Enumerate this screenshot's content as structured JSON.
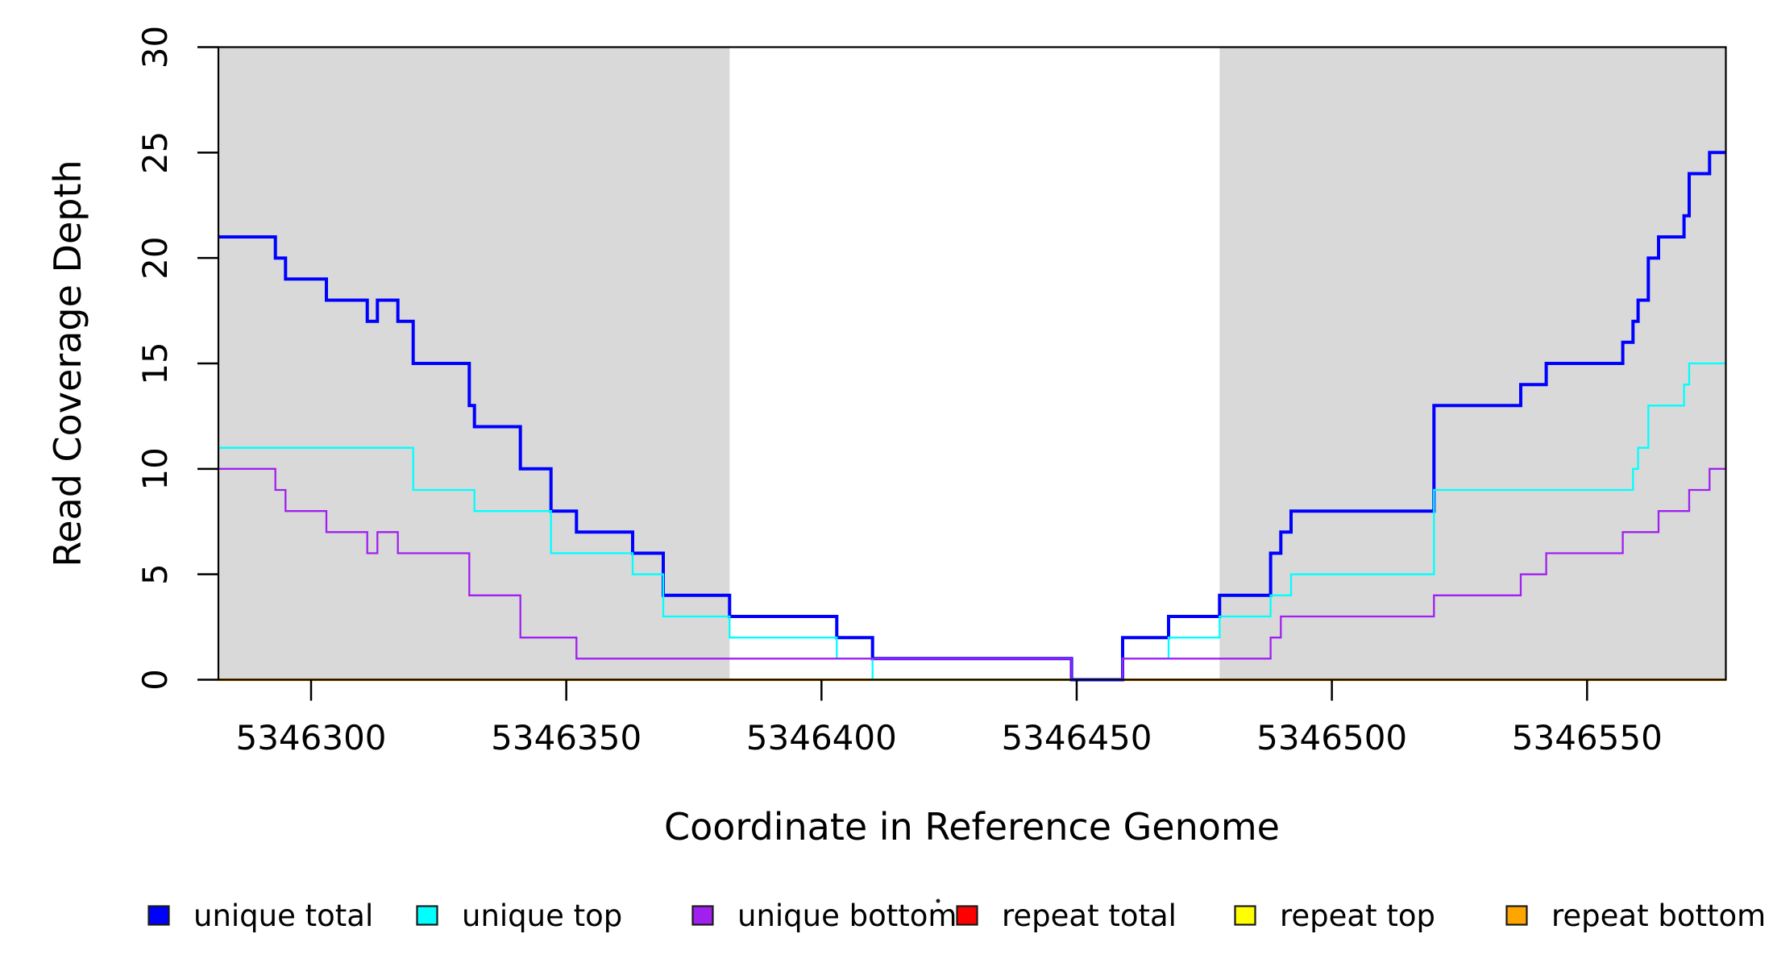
{
  "figure": {
    "background": "#FFFFFF",
    "stray_mark": {
      "color": "#1a1a1a"
    }
  },
  "chart_data": {
    "type": "line",
    "step": true,
    "title": "",
    "xlabel": "Coordinate in Reference Genome",
    "ylabel": "Read Coverage Depth",
    "xlim": [
      5346281.8,
      5346577.2
    ],
    "ylim": [
      0,
      30
    ],
    "grid": false,
    "legend_position": "bottom",
    "x_ticks": [
      5346300,
      5346350,
      5346400,
      5346450,
      5346500,
      5346550
    ],
    "x_tick_labels": [
      "5346300",
      "5346350",
      "5346400",
      "5346450",
      "5346500",
      "5346550"
    ],
    "y_ticks": [
      0,
      5,
      10,
      15,
      20,
      25,
      30
    ],
    "y_tick_labels": [
      "0",
      "5",
      "10",
      "15",
      "20",
      "25",
      "30"
    ],
    "shade_color": "#D9D9D9",
    "shaded_regions": [
      [
        5346281.8,
        5346382
      ],
      [
        5346478,
        5346577.2
      ]
    ],
    "draw_order": [
      "repeat total",
      "repeat top",
      "repeat bottom",
      "unique total",
      "unique top",
      "unique bottom"
    ],
    "series": [
      {
        "name": "unique total",
        "color": "#0000FF",
        "width": 4,
        "points": [
          [
            5346281.8,
            21
          ],
          [
            5346293,
            20
          ],
          [
            5346295,
            19
          ],
          [
            5346303,
            18
          ],
          [
            5346311,
            17
          ],
          [
            5346313,
            18
          ],
          [
            5346317,
            17
          ],
          [
            5346320,
            15
          ],
          [
            5346331,
            13
          ],
          [
            5346332,
            12
          ],
          [
            5346341,
            10
          ],
          [
            5346347,
            8
          ],
          [
            5346352,
            7
          ],
          [
            5346363,
            6
          ],
          [
            5346369,
            4
          ],
          [
            5346382,
            3
          ],
          [
            5346403,
            2
          ],
          [
            5346410,
            1
          ],
          [
            5346449,
            0
          ],
          [
            5346459,
            2
          ],
          [
            5346468,
            3
          ],
          [
            5346478,
            4
          ],
          [
            5346488,
            6
          ],
          [
            5346490,
            7
          ],
          [
            5346492,
            8
          ],
          [
            5346520,
            13
          ],
          [
            5346537,
            14
          ],
          [
            5346542,
            15
          ],
          [
            5346557,
            16
          ],
          [
            5346559,
            17
          ],
          [
            5346560,
            18
          ],
          [
            5346562,
            20
          ],
          [
            5346564,
            21
          ],
          [
            5346569,
            22
          ],
          [
            5346570,
            24
          ],
          [
            5346574,
            25
          ]
        ]
      },
      {
        "name": "unique top",
        "color": "#00FFFF",
        "width": 2.3,
        "points": [
          [
            5346281.8,
            11
          ],
          [
            5346320,
            9
          ],
          [
            5346332,
            8
          ],
          [
            5346347,
            6
          ],
          [
            5346363,
            5
          ],
          [
            5346369,
            3
          ],
          [
            5346382,
            2
          ],
          [
            5346403,
            1
          ],
          [
            5346410,
            0
          ],
          [
            5346459,
            1
          ],
          [
            5346468,
            2
          ],
          [
            5346478,
            3
          ],
          [
            5346488,
            4
          ],
          [
            5346492,
            5
          ],
          [
            5346520,
            9
          ],
          [
            5346559,
            10
          ],
          [
            5346560,
            11
          ],
          [
            5346562,
            13
          ],
          [
            5346569,
            14
          ],
          [
            5346570,
            15
          ]
        ]
      },
      {
        "name": "unique bottom",
        "color": "#A020F0",
        "width": 2.3,
        "points": [
          [
            5346281.8,
            10
          ],
          [
            5346293,
            9
          ],
          [
            5346295,
            8
          ],
          [
            5346303,
            7
          ],
          [
            5346311,
            6
          ],
          [
            5346313,
            7
          ],
          [
            5346317,
            6
          ],
          [
            5346331,
            4
          ],
          [
            5346341,
            2
          ],
          [
            5346352,
            1
          ],
          [
            5346449,
            0
          ],
          [
            5346459,
            1
          ],
          [
            5346488,
            2
          ],
          [
            5346490,
            3
          ],
          [
            5346520,
            4
          ],
          [
            5346537,
            5
          ],
          [
            5346542,
            6
          ],
          [
            5346557,
            7
          ],
          [
            5346564,
            8
          ],
          [
            5346570,
            9
          ],
          [
            5346574,
            10
          ]
        ]
      },
      {
        "name": "repeat total",
        "color": "#FF0000",
        "width": 2.3,
        "points": [
          [
            5346281.8,
            0
          ]
        ]
      },
      {
        "name": "repeat top",
        "color": "#FFFF00",
        "width": 2.3,
        "points": [
          [
            5346281.8,
            0
          ]
        ]
      },
      {
        "name": "repeat bottom",
        "color": "#FFA500",
        "width": 3.2,
        "points": [
          [
            5346281.8,
            0
          ]
        ]
      }
    ],
    "legend": [
      {
        "label": "unique total",
        "color": "#0000FF"
      },
      {
        "label": "unique top",
        "color": "#00FFFF"
      },
      {
        "label": "unique bottom",
        "color": "#A020F0"
      },
      {
        "label": "repeat total",
        "color": "#FF0000"
      },
      {
        "label": "repeat top",
        "color": "#FFFF00"
      },
      {
        "label": "repeat bottom",
        "color": "#FFA500"
      }
    ]
  }
}
